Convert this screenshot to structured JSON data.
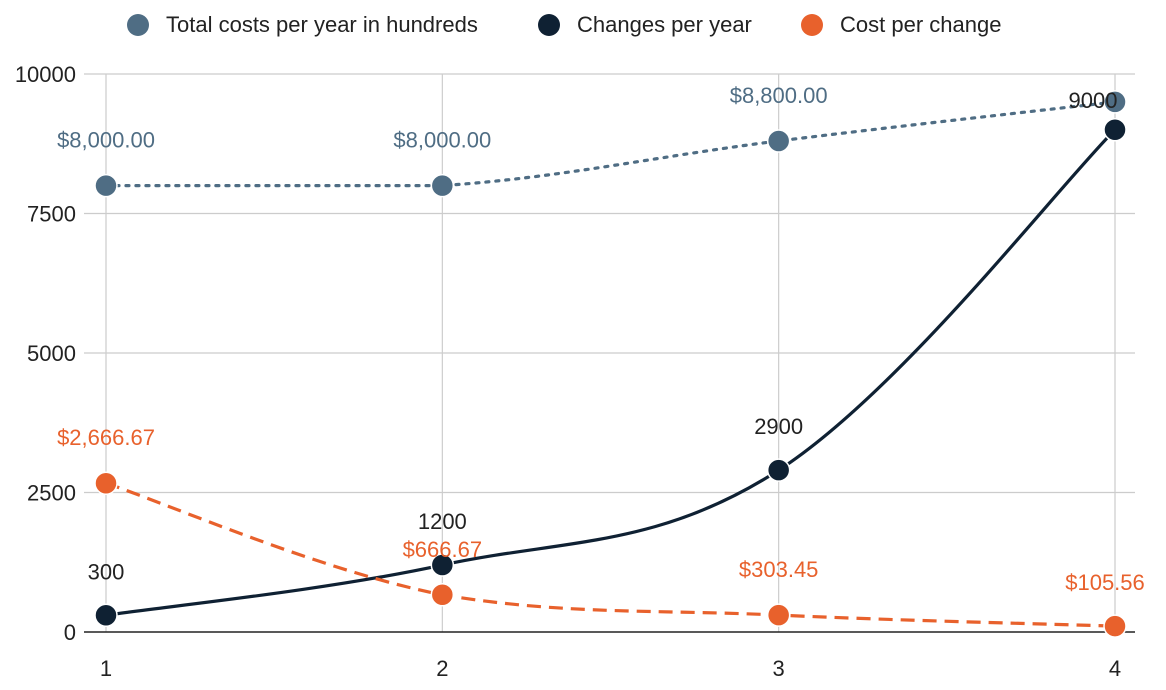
{
  "chart_data": {
    "type": "line",
    "categories": [
      "1",
      "2",
      "3",
      "4"
    ],
    "ylim": [
      0,
      10000
    ],
    "yticks": [
      0,
      2500,
      5000,
      7500,
      10000
    ],
    "yticklabels": [
      "0",
      "2500",
      "5000",
      "7500",
      "10000"
    ],
    "grid": true,
    "legend_position": "top",
    "series": [
      {
        "name": "Total costs per year in hundreds",
        "values": [
          8000,
          8000,
          8800,
          9500
        ],
        "labels": [
          "$8,000.00",
          "$8,000.00",
          "$8,800.00",
          ""
        ],
        "color": "#4f6d84",
        "line_style": "dotted"
      },
      {
        "name": "Changes per year",
        "values": [
          300,
          1200,
          2900,
          9000
        ],
        "labels": [
          "300",
          "1200",
          "2900",
          "9000"
        ],
        "color": "#0f2133",
        "line_style": "solid"
      },
      {
        "name": "Cost per change",
        "values": [
          2666.67,
          666.67,
          303.45,
          105.56
        ],
        "labels": [
          "$2,666.67",
          "$666.67",
          "$303.45",
          "$105.56"
        ],
        "color": "#e8612c",
        "line_style": "dashed"
      }
    ]
  }
}
